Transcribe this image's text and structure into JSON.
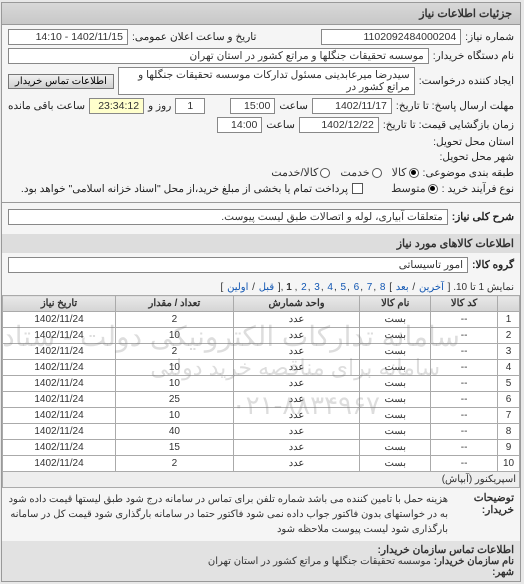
{
  "panel": {
    "title": "جزئیات اطلاعات نیاز"
  },
  "header": {
    "labels": {
      "need_no": "شماره نیاز:",
      "announce": "تاریخ و ساعت اعلان عمومی:",
      "buyer_org": "نام دستگاه خریدار:",
      "requester": "ایجاد کننده درخواست:",
      "contact_btn": "اطلاعات تماس خریدار",
      "deadline_send": "مهلت ارسال پاسخ: تا تاریخ:",
      "time_lbl": "ساعت",
      "remaining": "ساعت باقی مانده",
      "day_and": "روز و",
      "price_deadline": "زمان بازگشایی قیمت: تا تاریخ:",
      "delivery_state": "استان محل تحویل:",
      "delivery_city": "شهر محل تحویل:",
      "category": "طبقه بندی موضوعی:",
      "goods": "کالا",
      "service": "خدمت",
      "goods_service": "کالا/خدمت",
      "buy_process": "نوع فرآیند خرید :",
      "mid": "متوسط",
      "buy_process_note": "پرداخت تمام یا بخشی از مبلغ خرید،از محل \"اسناد خزانه اسلامی\" خواهد بود."
    },
    "values": {
      "need_no": "1102092484000204",
      "announce": "1402/11/15 - 14:10",
      "buyer_org": "موسسه تحقیقات جنگلها و مراتع کشور در استان تهران",
      "requester": "سیدرضا میرعابدینی مسئول تدارکات موسسه تحقیقات جنگلها و مراتع کشور در",
      "deadline_date": "1402/11/17",
      "deadline_time": "15:00",
      "remaining_days": "1",
      "remaining_time": "23:34:12",
      "price_date": "1402/12/22",
      "price_time": "14:00"
    }
  },
  "need_subject": {
    "label": "شرح کلی نیاز:",
    "value": "متعلقات آبیاری، لوله و اتصالات طبق لیست پیوست."
  },
  "goods_section": {
    "title": "اطلاعات کالاهای مورد نیاز",
    "group_label": "گروه کالا:",
    "group_value": "امور تاسیساتی"
  },
  "pager": {
    "prefix": "نمایش 1 تا 10. [ ",
    "last": "آخرین",
    "next": "بعد",
    "pages": [
      "8",
      "7",
      "6",
      "5",
      "4",
      "3",
      "2"
    ],
    "current": "1",
    "prev": "قبل",
    "first": "اولین",
    "suffix": " ]"
  },
  "table": {
    "headers": {
      "idx": "",
      "code": "کد کالا",
      "name": "نام کالا",
      "unit": "واحد شمارش",
      "qty": "تعداد / مقدار",
      "date": "تاریخ نیاز",
      "action": "اسپریکنور (آبپاش)"
    },
    "rows": [
      {
        "i": "1",
        "code": "--",
        "name": "بست",
        "unit": "عدد",
        "qty": "2",
        "date": "1402/11/24"
      },
      {
        "i": "2",
        "code": "--",
        "name": "بست",
        "unit": "عدد",
        "qty": "10",
        "date": "1402/11/24"
      },
      {
        "i": "3",
        "code": "--",
        "name": "بست",
        "unit": "عدد",
        "qty": "2",
        "date": "1402/11/24"
      },
      {
        "i": "4",
        "code": "--",
        "name": "بست",
        "unit": "عدد",
        "qty": "10",
        "date": "1402/11/24"
      },
      {
        "i": "5",
        "code": "--",
        "name": "بست",
        "unit": "عدد",
        "qty": "10",
        "date": "1402/11/24"
      },
      {
        "i": "6",
        "code": "--",
        "name": "بست",
        "unit": "عدد",
        "qty": "25",
        "date": "1402/11/24"
      },
      {
        "i": "7",
        "code": "--",
        "name": "بست",
        "unit": "عدد",
        "qty": "10",
        "date": "1402/11/24"
      },
      {
        "i": "8",
        "code": "--",
        "name": "بست",
        "unit": "عدد",
        "qty": "40",
        "date": "1402/11/24"
      },
      {
        "i": "9",
        "code": "--",
        "name": "بست",
        "unit": "عدد",
        "qty": "15",
        "date": "1402/11/24"
      },
      {
        "i": "10",
        "code": "--",
        "name": "بست",
        "unit": "عدد",
        "qty": "2",
        "date": "1402/11/24"
      }
    ],
    "watermark_line1": "سامانه تدارکات الکترونیکی دولت - ستاد ایران",
    "watermark_line2": "سامانه برای مناقصه خرید دولتی",
    "watermark_line3": "۰۲۱-۸۸۳۴۹۶۷"
  },
  "notes": {
    "label": "توضیحات خریدار:",
    "text": "هزینه حمل با تامین کننده می باشد شماره تلفن برای تماس در سامانه درج شود طبق لیستها قیمت داده شود به در خواستهای بدون فاکتور جواب داده نمی شود فاکتور حتما در سامانه بارگذاری شود قیمت کل در سامانه بارگذاری شود لیست پیوست ملاحظه شود"
  },
  "footer": {
    "title": "اطلاعات تماس سازمان خریدار:",
    "org_label": "نام سازمان خریدار:",
    "org_value": "موسسه تحقیقات جنگلها و مراتع کشور در استان تهران",
    "city_label": "شهر:"
  }
}
